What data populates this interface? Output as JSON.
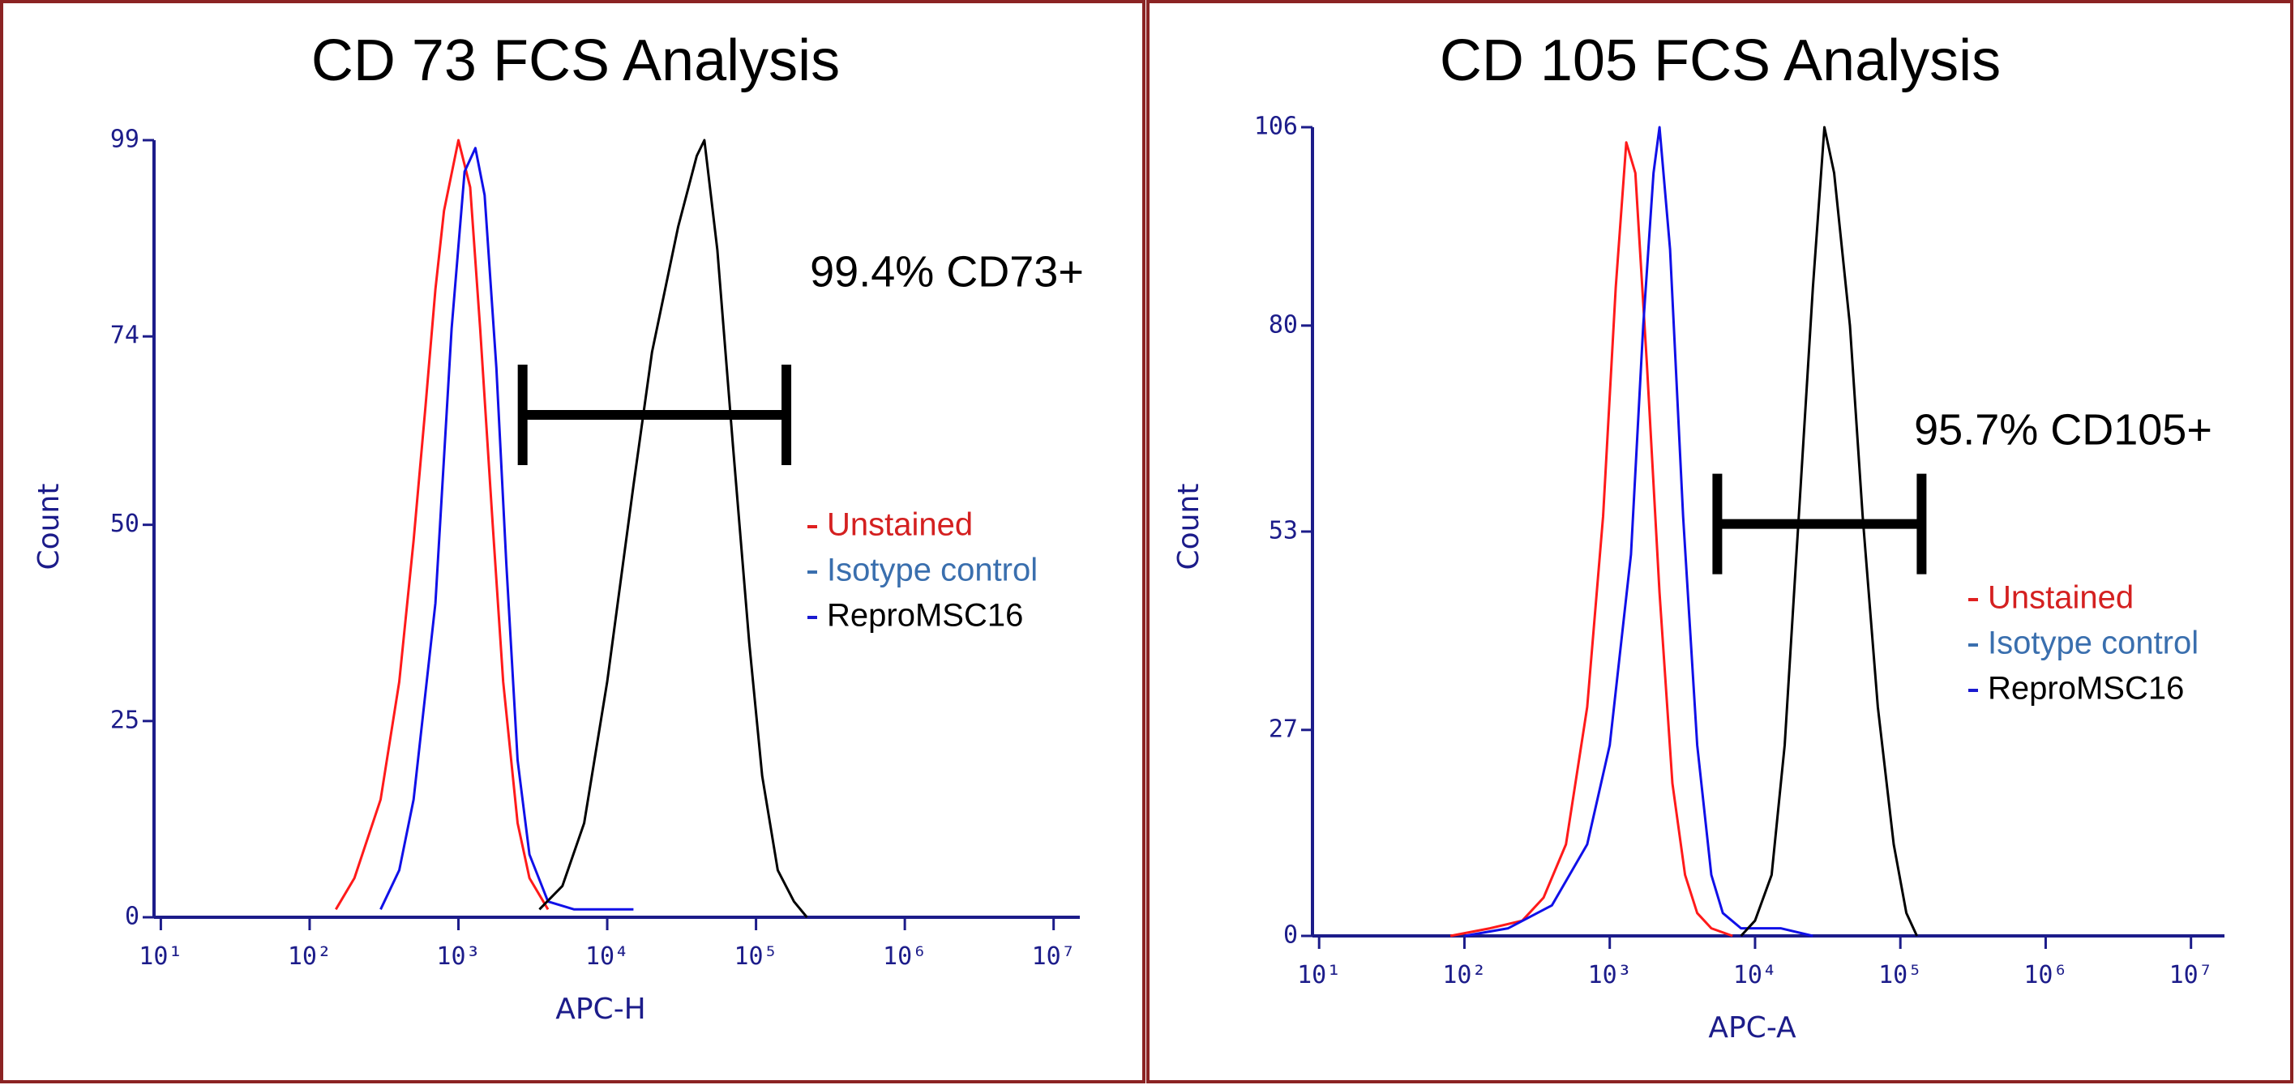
{
  "chart_data": [
    {
      "type": "line",
      "title": "CD 73 FCS Analysis",
      "x_label": "APC-H",
      "y_label": "Count",
      "xscale": "log",
      "xlim": [
        9,
        15000000
      ],
      "xticks": [
        {
          "value": 10,
          "label": "10¹"
        },
        {
          "value": 100,
          "label": "10²"
        },
        {
          "value": 1000,
          "label": "10³"
        },
        {
          "value": 10000,
          "label": "10⁴"
        },
        {
          "value": 100000,
          "label": "10⁵"
        },
        {
          "value": 1000000,
          "label": "10⁶"
        },
        {
          "value": 10000000,
          "label": "10⁷"
        }
      ],
      "ylim": [
        0,
        99
      ],
      "yticks": [
        0,
        25,
        50,
        74,
        99
      ],
      "annotation": "99.4% CD73+",
      "gate": {
        "x": [
          2700,
          160000
        ],
        "y": 64
      },
      "series": [
        {
          "name": "Unstained",
          "color": "#ff1a1a",
          "legend_text_color": "#d42020",
          "legend_marker_color": "#e02020",
          "x": [
            150,
            200,
            300,
            400,
            500,
            600,
            700,
            800,
            1000,
            1200,
            1400,
            1700,
            2000,
            2500,
            3000,
            4000
          ],
          "values": [
            1,
            5,
            15,
            30,
            48,
            65,
            80,
            90,
            99,
            93,
            75,
            50,
            30,
            12,
            5,
            1
          ]
        },
        {
          "name": "Isotype control",
          "color": "#1010e8",
          "legend_text_color": "#3a6fae",
          "legend_marker_color": "#3a6fae",
          "x": [
            300,
            400,
            500,
            700,
            900,
            1100,
            1300,
            1500,
            1800,
            2100,
            2500,
            3000,
            4000,
            6000,
            15000
          ],
          "values": [
            1,
            6,
            15,
            40,
            75,
            95,
            98,
            92,
            70,
            45,
            20,
            8,
            2,
            1,
            1
          ]
        },
        {
          "name": "ReproMSC16",
          "color": "#000000",
          "legend_text_color": "#000000",
          "legend_marker_color": "#1a1ad0",
          "x": [
            3500,
            5000,
            7000,
            10000,
            15000,
            20000,
            30000,
            40000,
            45000,
            55000,
            70000,
            90000,
            110000,
            140000,
            180000,
            220000
          ],
          "values": [
            1,
            4,
            12,
            30,
            55,
            72,
            88,
            97,
            99,
            85,
            60,
            35,
            18,
            6,
            2,
            0
          ]
        }
      ]
    },
    {
      "type": "line",
      "title": "CD 105 FCS Analysis",
      "x_label": "APC-A",
      "y_label": "Count",
      "xscale": "log",
      "xlim": [
        9,
        17000000
      ],
      "xticks": [
        {
          "value": 10,
          "label": "10¹"
        },
        {
          "value": 100,
          "label": "10²"
        },
        {
          "value": 1000,
          "label": "10³"
        },
        {
          "value": 10000,
          "label": "10⁴"
        },
        {
          "value": 100000,
          "label": "10⁵"
        },
        {
          "value": 1000000,
          "label": "10⁶"
        },
        {
          "value": 10000000,
          "label": "10⁷"
        }
      ],
      "ylim": [
        0,
        106
      ],
      "yticks": [
        0,
        27,
        53,
        80,
        106
      ],
      "annotation": "95.7% CD105+",
      "gate": {
        "x": [
          5500,
          140000
        ],
        "y": 54
      },
      "series": [
        {
          "name": "Unstained",
          "color": "#ff1a1a",
          "legend_text_color": "#d42020",
          "legend_marker_color": "#e02020",
          "x": [
            80,
            150,
            250,
            350,
            500,
            700,
            900,
            1100,
            1300,
            1500,
            1800,
            2200,
            2700,
            3300,
            4000,
            5000,
            7000
          ],
          "values": [
            0,
            1,
            2,
            5,
            12,
            30,
            55,
            85,
            104,
            100,
            75,
            45,
            20,
            8,
            3,
            1,
            0
          ]
        },
        {
          "name": "Isotype control",
          "color": "#1010e8",
          "legend_text_color": "#3a6fae",
          "legend_marker_color": "#3a6fae",
          "x": [
            100,
            200,
            400,
            700,
            1000,
            1400,
            1700,
            2000,
            2200,
            2600,
            3200,
            4000,
            5000,
            6000,
            8000,
            15000,
            25000
          ],
          "values": [
            0,
            1,
            4,
            12,
            25,
            50,
            80,
            100,
            106,
            90,
            55,
            25,
            8,
            3,
            1,
            1,
            0
          ]
        },
        {
          "name": "ReproMSC16",
          "color": "#000000",
          "legend_text_color": "#000000",
          "legend_marker_color": "#1a1ad0",
          "x": [
            8000,
            10000,
            13000,
            16000,
            20000,
            25000,
            30000,
            35000,
            45000,
            55000,
            70000,
            90000,
            110000,
            130000
          ],
          "values": [
            0,
            2,
            8,
            25,
            55,
            85,
            106,
            100,
            80,
            55,
            30,
            12,
            3,
            0
          ]
        }
      ]
    }
  ]
}
